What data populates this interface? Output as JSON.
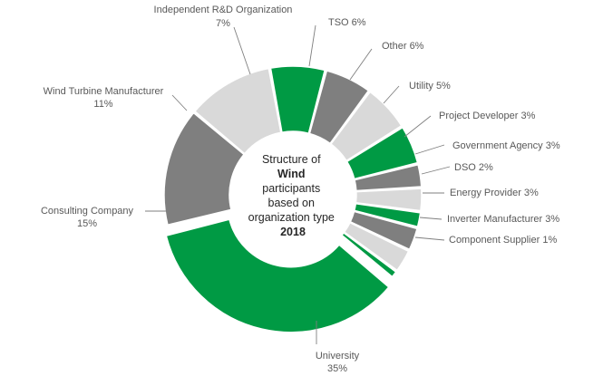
{
  "chart_data": {
    "type": "pie",
    "variant": "donut",
    "center_label": {
      "lines": [
        {
          "text": "Structure of",
          "bold": false
        },
        {
          "text": "Wind",
          "bold": true
        },
        {
          "text": "participants",
          "bold": false
        },
        {
          "text": "based on",
          "bold": false
        },
        {
          "text": "organization type",
          "bold": false
        },
        {
          "text": "2018",
          "bold": true
        }
      ]
    },
    "slices": [
      {
        "name": "University",
        "value": 35,
        "label": "35%",
        "color": "#009a44",
        "exploded": true
      },
      {
        "name": "Consulting Company",
        "value": 15,
        "label": "15%",
        "color": "#7f7f7f",
        "exploded": false
      },
      {
        "name": "Wind Turbine Manufacturer",
        "value": 11,
        "label": "11%",
        "color": "#d9d9d9",
        "exploded": false
      },
      {
        "name": "Independent R&D Organization",
        "value": 7,
        "label": "7%",
        "color": "#009a44",
        "exploded": false
      },
      {
        "name": "TSO",
        "value": 6,
        "label": "6%",
        "color": "#7f7f7f",
        "exploded": false
      },
      {
        "name": "Other",
        "value": 6,
        "label": "6%",
        "color": "#d9d9d9",
        "exploded": false
      },
      {
        "name": "Utility",
        "value": 5,
        "label": "5%",
        "color": "#009a44",
        "exploded": false
      },
      {
        "name": "Project Developer",
        "value": 3,
        "label": "3%",
        "color": "#7f7f7f",
        "exploded": false
      },
      {
        "name": "Government Agency",
        "value": 3,
        "label": "3%",
        "color": "#d9d9d9",
        "exploded": false
      },
      {
        "name": "DSO",
        "value": 2,
        "label": "2%",
        "color": "#009a44",
        "exploded": false
      },
      {
        "name": "Energy Provider",
        "value": 3,
        "label": "3%",
        "color": "#7f7f7f",
        "exploded": false
      },
      {
        "name": "Inverter Manufacturer",
        "value": 3,
        "label": "3%",
        "color": "#d9d9d9",
        "exploded": false
      },
      {
        "name": "Component Supplier",
        "value": 1,
        "label": "1%",
        "color": "#009a44",
        "exploded": false
      }
    ]
  }
}
